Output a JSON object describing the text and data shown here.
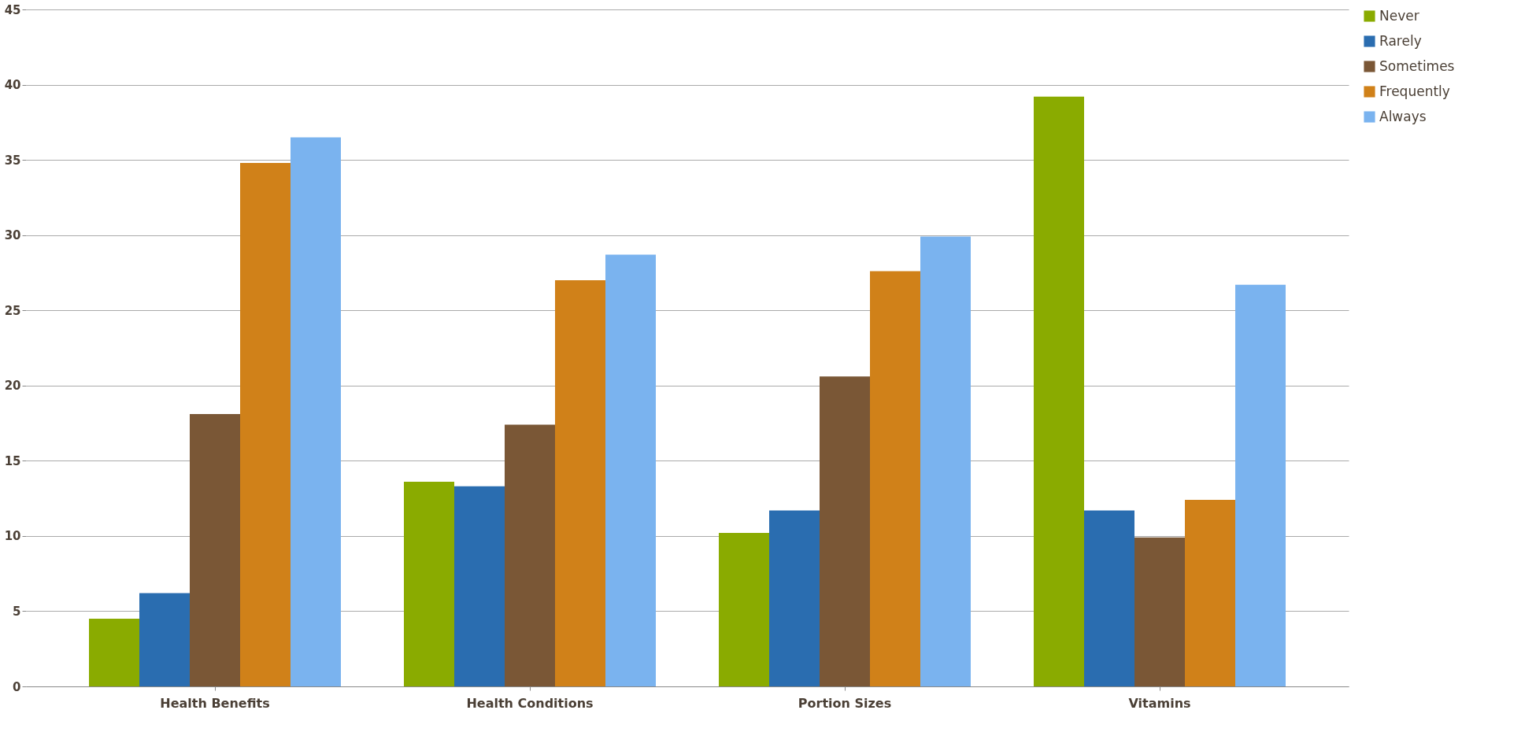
{
  "chart_data": {
    "type": "bar",
    "categories": [
      "Health Benefits",
      "Health Conditions",
      "Portion Sizes",
      "Vitamins"
    ],
    "series": [
      {
        "name": "Never",
        "color": "#8aab00",
        "values": [
          4.5,
          13.6,
          10.2,
          39.2
        ]
      },
      {
        "name": "Rarely",
        "color": "#2a6db0",
        "values": [
          6.2,
          13.3,
          11.7,
          11.7
        ]
      },
      {
        "name": "Sometimes",
        "color": "#7a5736",
        "values": [
          18.1,
          17.4,
          20.6,
          9.9
        ]
      },
      {
        "name": "Frequently",
        "color": "#d08119",
        "values": [
          34.8,
          27.0,
          27.6,
          12.4
        ]
      },
      {
        "name": "Always",
        "color": "#7ab3ef",
        "values": [
          36.5,
          28.7,
          29.9,
          26.7
        ]
      }
    ],
    "ylim": [
      0,
      45
    ],
    "yticks": [
      0,
      5,
      10,
      15,
      20,
      25,
      30,
      35,
      40,
      45
    ],
    "grid": "y",
    "legend": "right"
  }
}
